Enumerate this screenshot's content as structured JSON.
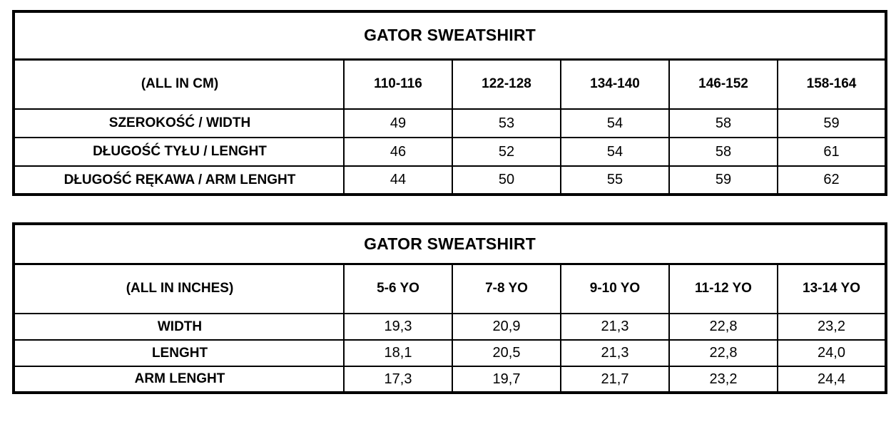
{
  "colors": {
    "background": "#ffffff",
    "border": "#000000",
    "text": "#000000"
  },
  "table_cm": {
    "title": "GATOR SWEATSHIRT",
    "unit_label": "(ALL IN CM)",
    "columns": [
      "110-116",
      "122-128",
      "134-140",
      "146-152",
      "158-164"
    ],
    "rows": [
      {
        "label": "SZEROKOŚĆ / WIDTH",
        "values": [
          "49",
          "53",
          "54",
          "58",
          "59"
        ]
      },
      {
        "label": "DŁUGOŚĆ TYŁU / LENGHT",
        "values": [
          "46",
          "52",
          "54",
          "58",
          "61"
        ]
      },
      {
        "label": "DŁUGOŚĆ RĘKAWA / ARM LENGHT",
        "values": [
          "44",
          "50",
          "55",
          "59",
          "62"
        ]
      }
    ]
  },
  "table_inches": {
    "title": "GATOR SWEATSHIRT",
    "unit_label": "(ALL IN INCHES)",
    "columns": [
      "5-6 YO",
      "7-8 YO",
      "9-10 YO",
      "11-12 YO",
      "13-14 YO"
    ],
    "rows": [
      {
        "label": "WIDTH",
        "values": [
          "19,3",
          "20,9",
          "21,3",
          "22,8",
          "23,2"
        ]
      },
      {
        "label": "LENGHT",
        "values": [
          "18,1",
          "20,5",
          "21,3",
          "22,8",
          "24,0"
        ]
      },
      {
        "label": "ARM LENGHT",
        "values": [
          "17,3",
          "19,7",
          "21,7",
          "23,2",
          "24,4"
        ]
      }
    ]
  }
}
